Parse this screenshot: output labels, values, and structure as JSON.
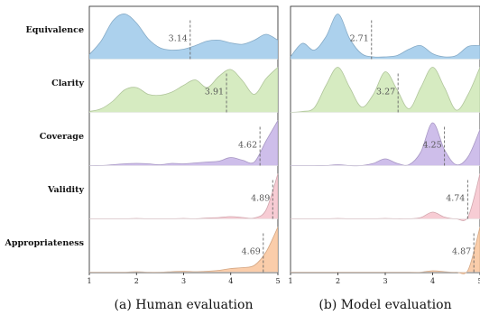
{
  "chart_data": [
    {
      "type": "area",
      "subplot_caption": "(a) Human evaluation",
      "x_ticks": [
        1,
        2,
        3,
        4,
        5
      ],
      "xlim": [
        1,
        5
      ],
      "rows": [
        {
          "label": "Equivalence",
          "color": "#9ec9ea",
          "density": [
            0.1,
            0.4,
            0.85,
            1.0,
            0.8,
            0.45,
            0.25,
            0.2,
            0.22,
            0.3,
            0.4,
            0.42,
            0.36,
            0.33,
            0.42,
            0.55,
            0.42
          ],
          "mean": 3.14,
          "mean_label": "3.14"
        },
        {
          "label": "Clarity",
          "color": "#cfe8b6",
          "density": [
            0.02,
            0.08,
            0.25,
            0.5,
            0.55,
            0.4,
            0.38,
            0.45,
            0.6,
            0.72,
            0.55,
            0.8,
            0.95,
            0.7,
            0.4,
            0.75,
            1.0
          ],
          "mean": 3.91,
          "mean_label": "3.91"
        },
        {
          "label": "Coverage",
          "color": "#c6b3e6",
          "density": [
            0.0,
            0.0,
            0.02,
            0.04,
            0.05,
            0.04,
            0.02,
            0.05,
            0.04,
            0.06,
            0.08,
            0.1,
            0.18,
            0.12,
            0.08,
            0.55,
            1.0
          ],
          "mean": 4.62,
          "mean_label": "4.62"
        },
        {
          "label": "Validity",
          "color": "#f6c3cc",
          "density": [
            0.0,
            0.0,
            0.0,
            0.0,
            0.01,
            0.0,
            0.0,
            0.0,
            0.01,
            0.0,
            0.02,
            0.03,
            0.05,
            0.03,
            0.02,
            0.2,
            1.0
          ],
          "mean": 4.89,
          "mean_label": "4.89"
        },
        {
          "label": "Appropriateness",
          "color": "#f9c49b",
          "density": [
            0.0,
            0.0,
            0.0,
            0.0,
            0.01,
            0.0,
            0.0,
            0.01,
            0.02,
            0.01,
            0.02,
            0.04,
            0.08,
            0.1,
            0.15,
            0.45,
            1.0
          ],
          "mean": 4.69,
          "mean_label": "4.69"
        }
      ]
    },
    {
      "type": "area",
      "subplot_caption": "(b) Model evaluation",
      "x_ticks": [
        1,
        2,
        3,
        4,
        5
      ],
      "xlim": [
        1,
        5
      ],
      "rows": [
        {
          "label": "Equivalence",
          "color": "#9ec9ea",
          "density": [
            0.05,
            0.35,
            0.2,
            0.5,
            1.0,
            0.45,
            0.12,
            0.05,
            0.05,
            0.08,
            0.22,
            0.3,
            0.12,
            0.05,
            0.08,
            0.28,
            0.3
          ],
          "mean": 2.71,
          "mean_label": "2.71"
        },
        {
          "label": "Clarity",
          "color": "#cfe8b6",
          "density": [
            0.0,
            0.02,
            0.1,
            0.6,
            1.0,
            0.55,
            0.12,
            0.4,
            0.9,
            0.5,
            0.08,
            0.55,
            1.0,
            0.55,
            0.05,
            0.4,
            1.0
          ],
          "mean": 3.27,
          "mean_label": "3.27"
        },
        {
          "label": "Coverage",
          "color": "#c6b3e6",
          "density": [
            0.0,
            0.0,
            0.0,
            0.0,
            0.02,
            0.0,
            0.0,
            0.05,
            0.15,
            0.05,
            0.02,
            0.3,
            0.95,
            0.35,
            0.02,
            0.2,
            0.8
          ],
          "mean": 4.25,
          "mean_label": "4.25"
        },
        {
          "label": "Validity",
          "color": "#f6c3cc",
          "density": [
            0.0,
            0.0,
            0.0,
            0.0,
            0.01,
            0.0,
            0.0,
            0.0,
            0.01,
            0.0,
            0.0,
            0.03,
            0.15,
            0.04,
            0.0,
            0.05,
            1.0
          ],
          "mean": 4.74,
          "mean_label": "4.74"
        },
        {
          "label": "Appropriateness",
          "color": "#f9c49b",
          "density": [
            0.0,
            0.0,
            0.0,
            0.0,
            0.0,
            0.0,
            0.0,
            0.0,
            0.0,
            0.0,
            0.0,
            0.0,
            0.03,
            0.01,
            0.0,
            0.05,
            1.0
          ],
          "mean": 4.87,
          "mean_label": "4.87"
        }
      ]
    }
  ]
}
